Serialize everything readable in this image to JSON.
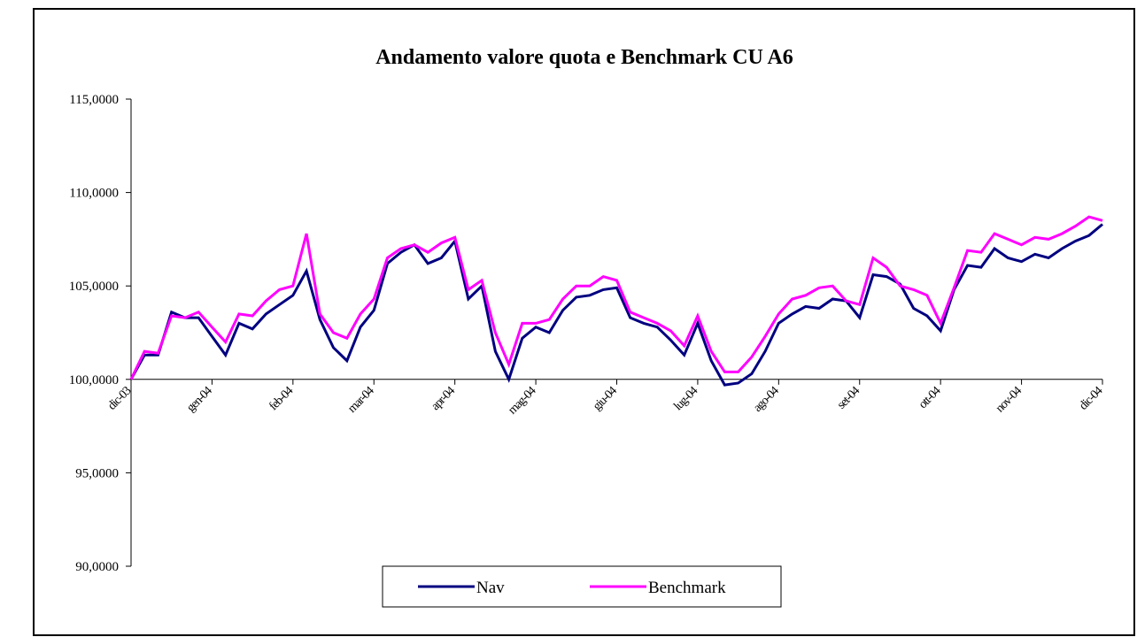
{
  "chart_data": {
    "type": "line",
    "title": "Andamento valore quota e Benchmark CU A6",
    "categories": [
      "dic-03",
      null,
      null,
      null,
      null,
      null,
      "gen-04",
      null,
      null,
      null,
      null,
      null,
      "feb-04",
      null,
      null,
      null,
      null,
      null,
      "mar-04",
      null,
      null,
      null,
      null,
      null,
      "apr-04",
      null,
      null,
      null,
      null,
      null,
      "mag-04",
      null,
      null,
      null,
      null,
      null,
      "giu-04",
      null,
      null,
      null,
      null,
      null,
      "lug-04",
      null,
      null,
      null,
      null,
      null,
      "ago-04",
      null,
      null,
      null,
      null,
      null,
      "set-04",
      null,
      null,
      null,
      null,
      null,
      "ott-04",
      null,
      null,
      null,
      null,
      null,
      "nov-04",
      null,
      null,
      null,
      null,
      null,
      "dic-04"
    ],
    "series": [
      {
        "name": "Nav",
        "color": "#000080",
        "values": [
          100.0,
          101.3,
          101.3,
          103.6,
          103.3,
          103.3,
          102.3,
          101.3,
          103.0,
          102.7,
          103.5,
          104.0,
          104.5,
          105.8,
          103.2,
          101.7,
          101.0,
          102.8,
          103.7,
          106.2,
          106.8,
          107.2,
          106.2,
          106.5,
          107.4,
          104.3,
          105.0,
          101.5,
          100.0,
          102.2,
          102.8,
          102.5,
          103.7,
          104.4,
          104.5,
          104.8,
          104.9,
          103.3,
          103.0,
          102.8,
          102.1,
          101.3,
          103.0,
          101.0,
          99.7,
          99.8,
          100.3,
          101.5,
          103.0,
          103.5,
          103.9,
          103.8,
          104.3,
          104.2,
          103.3,
          105.6,
          105.5,
          105.1,
          103.8,
          103.4,
          102.6,
          104.8,
          106.1,
          106.0,
          107.0,
          106.5,
          106.3,
          106.7,
          106.5,
          107.0,
          107.4,
          107.7,
          108.3
        ]
      },
      {
        "name": "Benchmark",
        "color": "#ff00ff",
        "values": [
          100.0,
          101.5,
          101.4,
          103.4,
          103.3,
          103.6,
          102.8,
          102.0,
          103.5,
          103.4,
          104.2,
          104.8,
          105.0,
          107.8,
          103.5,
          102.5,
          102.2,
          103.5,
          104.3,
          106.5,
          107.0,
          107.2,
          106.8,
          107.3,
          107.6,
          104.8,
          105.3,
          102.5,
          100.8,
          103.0,
          103.0,
          103.2,
          104.3,
          105.0,
          105.0,
          105.5,
          105.3,
          103.6,
          103.3,
          103.0,
          102.6,
          101.8,
          103.4,
          101.5,
          100.4,
          100.4,
          101.2,
          102.3,
          103.5,
          104.3,
          104.5,
          104.9,
          105.0,
          104.2,
          104.0,
          106.5,
          106.0,
          105.0,
          104.8,
          104.5,
          103.0,
          104.9,
          106.9,
          106.8,
          107.8,
          107.5,
          107.2,
          107.6,
          107.5,
          107.8,
          108.2,
          108.7,
          108.5
        ]
      }
    ],
    "ylim": [
      90,
      115
    ],
    "yticks": [
      {
        "value": 90,
        "label": "90,0000"
      },
      {
        "value": 95,
        "label": "95,0000"
      },
      {
        "value": 100,
        "label": "100,0000"
      },
      {
        "value": 105,
        "label": "105,0000"
      },
      {
        "value": 110,
        "label": "110,0000"
      },
      {
        "value": 115,
        "label": "115,0000"
      }
    ],
    "xaxis_crosses": 100,
    "legend": "bottom"
  }
}
